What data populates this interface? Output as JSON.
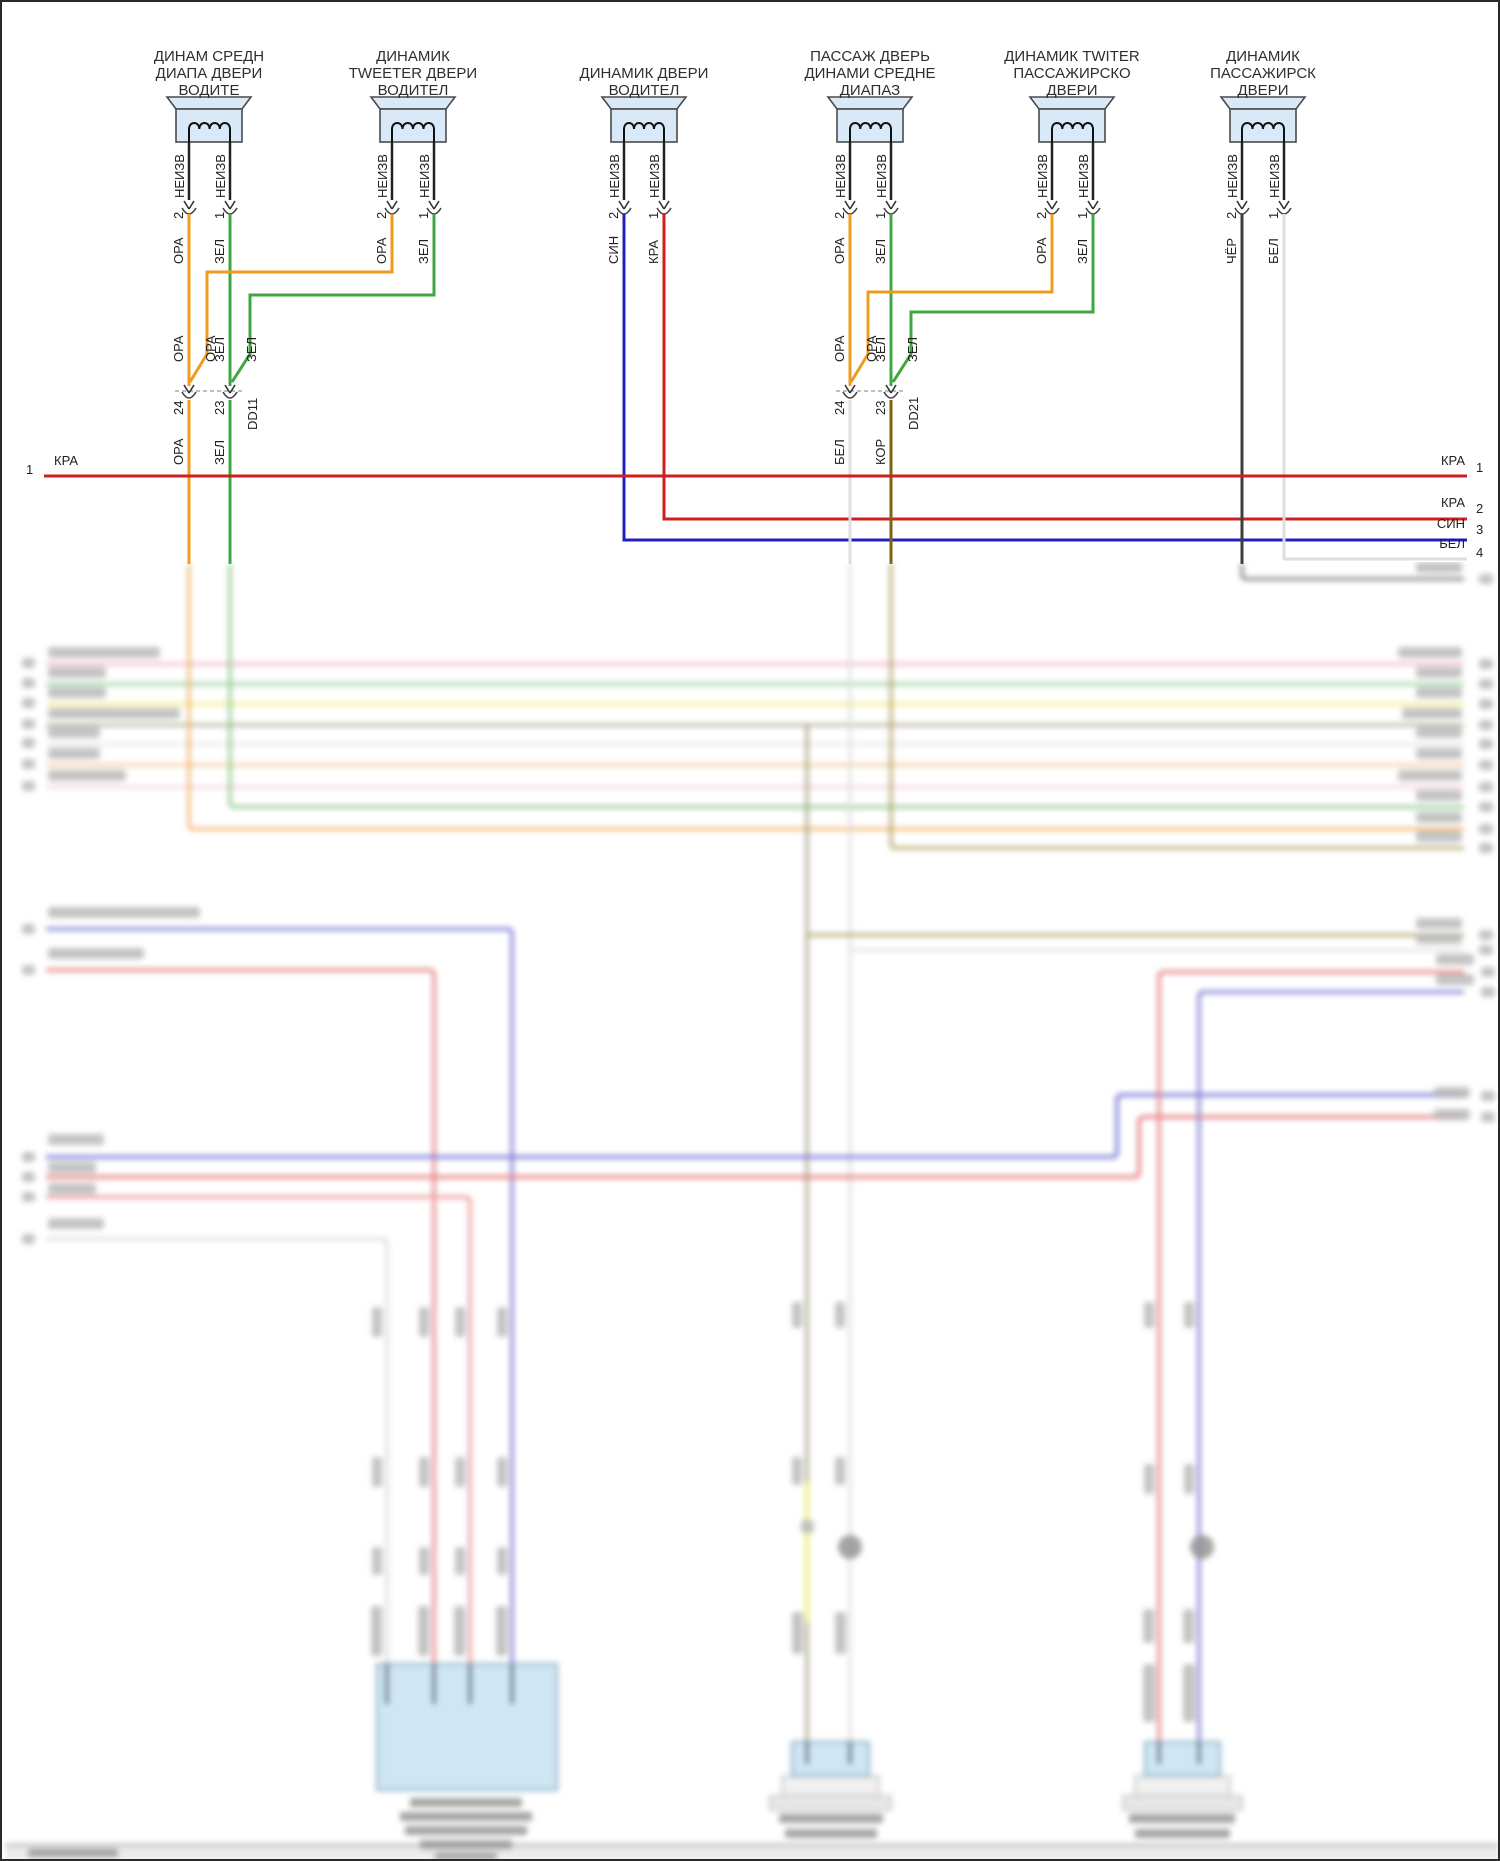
{
  "page": {
    "type": "wiring-diagram",
    "language": "ru"
  },
  "palette": {
    "orange": "#ef9b20",
    "green": "#3fa73f",
    "blue": "#2020c0",
    "red": "#cf1f1f",
    "white_wire": "#dedede",
    "black_wire": "#3c3c3c",
    "brown": "#7e6312",
    "speaker_fill": "#d9e9f8",
    "band_pink": "#f2a9c4",
    "band_green": "#8cc98c",
    "band_yellow": "#eeea70",
    "band_olive": "#a8a285",
    "band_orange": "#f2b36b",
    "lower_blue": "#8a8ad8",
    "lower_red": "#e88a8a"
  },
  "speakers": [
    {
      "title_lines": [
        "ДИНАМ СРЕДН",
        "ДИАПА ДВЕРИ",
        "ВОДИТЕ"
      ],
      "pins": [
        {
          "num": "2",
          "status": "НЕИЗВ",
          "color": "ОРА"
        },
        {
          "num": "1",
          "status": "НЕИЗВ",
          "color": "ЗЕЛ"
        }
      ]
    },
    {
      "title_lines": [
        "ДИНАМИК",
        "TWEETER ДВЕРИ",
        "ВОДИТЕЛ"
      ],
      "pins": [
        {
          "num": "2",
          "status": "НЕИЗВ",
          "color": "ОРА"
        },
        {
          "num": "1",
          "status": "НЕИЗВ",
          "color": "ЗЕЛ"
        }
      ]
    },
    {
      "title_lines": [
        "ДИНАМИК ДВЕРИ",
        "ВОДИТЕЛ"
      ],
      "pins": [
        {
          "num": "2",
          "status": "НЕИЗВ",
          "color": "СИН"
        },
        {
          "num": "1",
          "status": "НЕИЗВ",
          "color": "КРА"
        }
      ]
    },
    {
      "title_lines": [
        "ПАССАЖ ДВЕРЬ",
        "ДИНАМИ СРЕДНЕ",
        "ДИАПАЗ"
      ],
      "pins": [
        {
          "num": "2",
          "status": "НЕИЗВ",
          "color": "ОРА"
        },
        {
          "num": "1",
          "status": "НЕИЗВ",
          "color": "ЗЕЛ"
        }
      ]
    },
    {
      "title_lines": [
        "ДИНАМИК TWITER",
        "ПАССАЖИРСКО",
        "ДВЕРИ"
      ],
      "pins": [
        {
          "num": "2",
          "status": "НЕИЗВ",
          "color": "ОРА"
        },
        {
          "num": "1",
          "status": "НЕИЗВ",
          "color": "ЗЕЛ"
        }
      ]
    },
    {
      "title_lines": [
        "ДИНАМИК",
        "ПАССАЖИРСК",
        "ДВЕРИ"
      ],
      "pins": [
        {
          "num": "2",
          "status": "НЕИЗВ",
          "color": "ЧЁР"
        },
        {
          "num": "1",
          "status": "НЕИЗВ",
          "color": "БЕЛ"
        }
      ]
    }
  ],
  "connectors": [
    {
      "name": "DD11",
      "pins": [
        "24",
        "23"
      ],
      "upper": [
        "ОРА",
        "ОРА",
        "ЗЕЛ",
        "ЗЕЛ"
      ],
      "lower": [
        "ОРА",
        "ЗЕЛ"
      ]
    },
    {
      "name": "DD21",
      "pins": [
        "24",
        "23"
      ],
      "upper": [
        "ОРА",
        "ОРА",
        "ЗЕЛ",
        "ЗЕЛ"
      ],
      "lower": [
        "БЕЛ",
        "КОР"
      ]
    }
  ],
  "bus_lines": [
    {
      "num": "1",
      "color_label": "КРА"
    },
    {
      "num": "2",
      "color_label": "КРА"
    },
    {
      "num": "3",
      "color_label": "СИН"
    },
    {
      "num": "4",
      "color_label": "БЕЛ"
    }
  ]
}
